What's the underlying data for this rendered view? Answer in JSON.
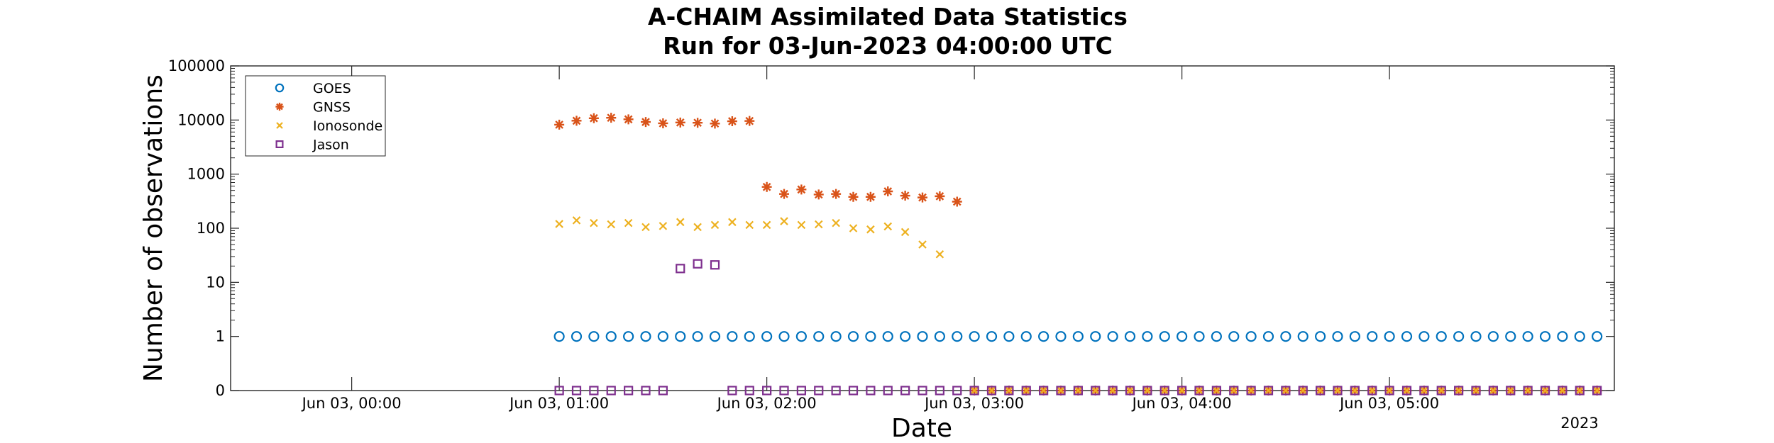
{
  "chart_data": {
    "type": "scatter",
    "title": "A-CHAIM Assimilated Data Statistics",
    "subtitle": "Run for 03-Jun-2023 04:00:00 UTC",
    "xlabel": "Date",
    "ylabel": "Number of observations",
    "year_label": "2023",
    "y_scale": "log",
    "y_ticks": [
      "0",
      "1",
      "10",
      "100",
      "1000",
      "10000",
      "100000"
    ],
    "x_range": [
      "2023-06-02T23:25",
      "2023-06-03T06:05"
    ],
    "x_ticks": [
      {
        "t": "2023-06-03T00:00",
        "label": "Jun 03, 00:00"
      },
      {
        "t": "2023-06-03T01:00",
        "label": "Jun 03, 01:00"
      },
      {
        "t": "2023-06-03T02:00",
        "label": "Jun 03, 02:00"
      },
      {
        "t": "2023-06-03T03:00",
        "label": "Jun 03, 03:00"
      },
      {
        "t": "2023-06-03T04:00",
        "label": "Jun 03, 04:00"
      },
      {
        "t": "2023-06-03T05:00",
        "label": "Jun 03, 05:00"
      }
    ],
    "grid": false,
    "legend_position": "top-left",
    "x_start": "2023-06-03T01:00",
    "x_step_minutes": 5,
    "series": [
      {
        "name": "GOES",
        "marker": "circle",
        "color": "#0072BD",
        "values": [
          1,
          1,
          1,
          1,
          1,
          1,
          1,
          1,
          1,
          1,
          1,
          1,
          1,
          1,
          1,
          1,
          1,
          1,
          1,
          1,
          1,
          1,
          1,
          1,
          1,
          1,
          1,
          1,
          1,
          1,
          1,
          1,
          1,
          1,
          1,
          1,
          1,
          1,
          1,
          1,
          1,
          1,
          1,
          1,
          1,
          1,
          1,
          1,
          1,
          1,
          1,
          1,
          1,
          1,
          1,
          1,
          1,
          1,
          1,
          1,
          1
        ]
      },
      {
        "name": "GNSS",
        "marker": "asterisk",
        "color": "#D95319",
        "values": [
          8200,
          9700,
          10800,
          11000,
          10300,
          9200,
          8700,
          9000,
          8900,
          8600,
          9500,
          9600,
          580,
          430,
          520,
          420,
          430,
          380,
          380,
          480,
          400,
          370,
          390,
          310,
          0,
          0,
          0,
          0,
          0,
          0,
          0,
          0,
          0,
          0,
          0,
          0,
          0,
          0,
          0,
          0,
          0,
          0,
          0,
          0,
          0,
          0,
          0,
          0,
          0,
          0,
          0,
          0,
          0,
          0,
          0,
          0,
          0,
          0,
          0,
          0,
          0
        ]
      },
      {
        "name": "Ionosonde",
        "marker": "x",
        "color": "#EDB120",
        "values": [
          120,
          140,
          125,
          118,
          125,
          105,
          110,
          130,
          105,
          115,
          130,
          115,
          115,
          135,
          115,
          118,
          125,
          100,
          95,
          108,
          85,
          50,
          33,
          null,
          0,
          0,
          0,
          0,
          0,
          0,
          0,
          0,
          0,
          0,
          0,
          0,
          0,
          0,
          0,
          0,
          0,
          0,
          0,
          0,
          0,
          0,
          0,
          0,
          0,
          0,
          0,
          0,
          0,
          0,
          0,
          0,
          0,
          0,
          0,
          0,
          0
        ]
      },
      {
        "name": "Jason",
        "marker": "square",
        "color": "#7E2F8E",
        "values": [
          0,
          0,
          0,
          0,
          0,
          0,
          0,
          18,
          22,
          21,
          0,
          0,
          0,
          0,
          0,
          0,
          0,
          0,
          0,
          0,
          0,
          0,
          0,
          0,
          0,
          0,
          0,
          0,
          0,
          0,
          0,
          0,
          0,
          0,
          0,
          0,
          0,
          0,
          0,
          0,
          0,
          0,
          0,
          0,
          0,
          0,
          0,
          0,
          0,
          0,
          0,
          0,
          0,
          0,
          0,
          0,
          0,
          0,
          0,
          0,
          0
        ]
      }
    ]
  }
}
